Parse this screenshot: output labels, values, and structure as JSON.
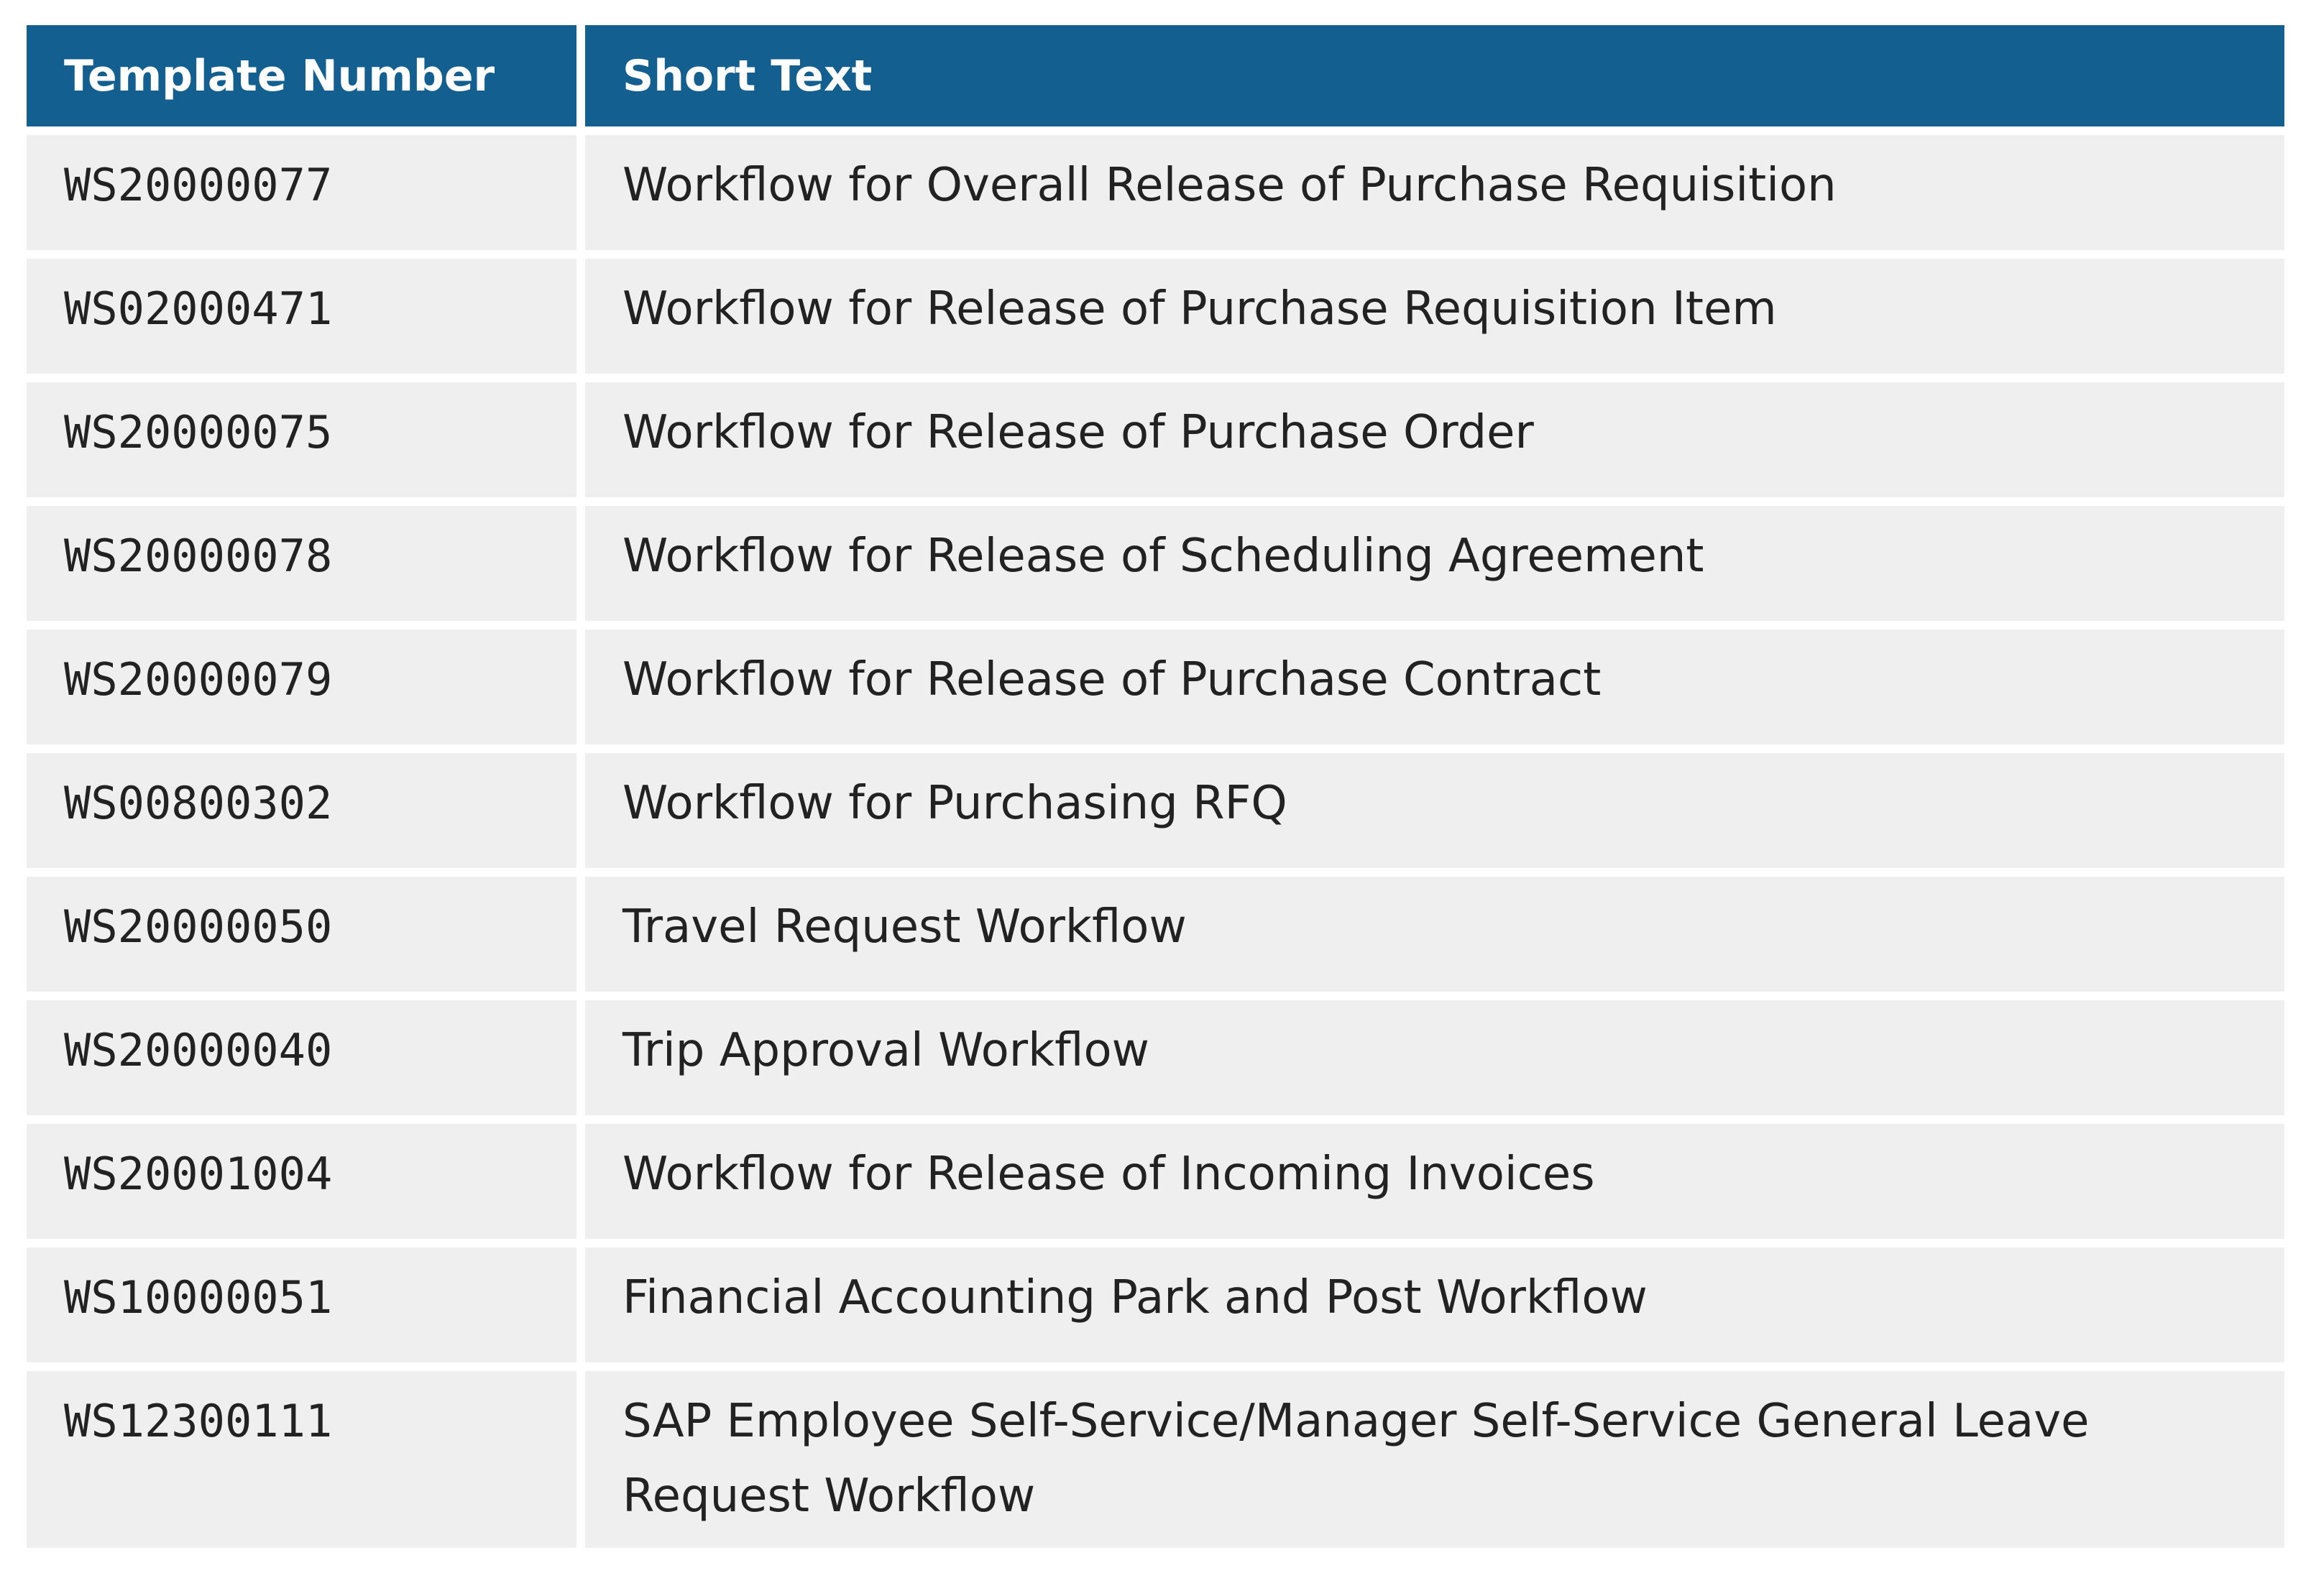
{
  "table": {
    "columns": [
      "Template Number",
      "Short Text"
    ],
    "rows": [
      [
        "WS20000077",
        "Workflow for Overall Release of Purchase Requisition"
      ],
      [
        "WS02000471",
        "Workflow for Release of Purchase Requisition Item"
      ],
      [
        "WS20000075",
        "Workflow for Release of Purchase Order"
      ],
      [
        "WS20000078",
        "Workflow for Release of Scheduling Agreement"
      ],
      [
        "WS20000079",
        "Workflow for Release of Purchase Contract"
      ],
      [
        "WS00800302",
        "Workflow for Purchasing RFQ"
      ],
      [
        "WS20000050",
        "Travel Request Workflow"
      ],
      [
        "WS20000040",
        "Trip Approval Workflow"
      ],
      [
        "WS20001004",
        "Workflow for Release of Incoming Invoices"
      ],
      [
        "WS10000051",
        "Financial Accounting Park and Post Workflow"
      ],
      [
        "WS12300111",
        "SAP Employee Self-Service/Manager Self-Service General Leave Request Workflow"
      ]
    ]
  }
}
